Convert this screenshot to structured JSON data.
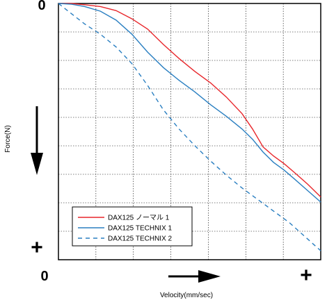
{
  "chart_data": {
    "type": "line",
    "title": "",
    "xlabel": "Velocity(mm/sec)",
    "ylabel": "Force(N)",
    "x_direction_symbol": "+",
    "y_direction_symbol": "+",
    "x_origin_label": "0",
    "y_origin_label": "0",
    "x_range": [
      0,
      1
    ],
    "y_range": [
      0,
      1
    ],
    "y_axis_inverted": true,
    "grid": true,
    "legend_position": "bottom-left",
    "series": [
      {
        "name": "DAX125 ノーマル 1",
        "color": "#e8262b",
        "dash": "solid",
        "points": [
          [
            0,
            0
          ],
          [
            0.05,
            0.0
          ],
          [
            0.1,
            0.005
          ],
          [
            0.16,
            0.012
          ],
          [
            0.22,
            0.028
          ],
          [
            0.28,
            0.06
          ],
          [
            0.34,
            0.1
          ],
          [
            0.4,
            0.16
          ],
          [
            0.46,
            0.215
          ],
          [
            0.52,
            0.265
          ],
          [
            0.58,
            0.31
          ],
          [
            0.64,
            0.365
          ],
          [
            0.7,
            0.43
          ],
          [
            0.74,
            0.49
          ],
          [
            0.78,
            0.56
          ],
          [
            0.82,
            0.595
          ],
          [
            0.86,
            0.625
          ],
          [
            0.9,
            0.66
          ],
          [
            0.95,
            0.705
          ],
          [
            1.0,
            0.755
          ]
        ]
      },
      {
        "name": "DAX125 TECHNIX 1",
        "color": "#2a7fc1",
        "dash": "solid",
        "points": [
          [
            0,
            0
          ],
          [
            0.05,
            0.003
          ],
          [
            0.1,
            0.012
          ],
          [
            0.16,
            0.03
          ],
          [
            0.22,
            0.065
          ],
          [
            0.28,
            0.12
          ],
          [
            0.34,
            0.19
          ],
          [
            0.4,
            0.25
          ],
          [
            0.46,
            0.3
          ],
          [
            0.52,
            0.345
          ],
          [
            0.58,
            0.395
          ],
          [
            0.64,
            0.44
          ],
          [
            0.7,
            0.49
          ],
          [
            0.74,
            0.53
          ],
          [
            0.78,
            0.58
          ],
          [
            0.82,
            0.62
          ],
          [
            0.86,
            0.65
          ],
          [
            0.9,
            0.685
          ],
          [
            0.95,
            0.73
          ],
          [
            1.0,
            0.775
          ]
        ]
      },
      {
        "name": "DAX125 TECHNIX 2",
        "color": "#2a7fc1",
        "dash": "dashed",
        "points": [
          [
            0,
            0
          ],
          [
            0.05,
            0.04
          ],
          [
            0.1,
            0.08
          ],
          [
            0.16,
            0.12
          ],
          [
            0.22,
            0.17
          ],
          [
            0.28,
            0.235
          ],
          [
            0.34,
            0.32
          ],
          [
            0.4,
            0.415
          ],
          [
            0.46,
            0.49
          ],
          [
            0.52,
            0.555
          ],
          [
            0.58,
            0.615
          ],
          [
            0.64,
            0.67
          ],
          [
            0.7,
            0.72
          ],
          [
            0.76,
            0.765
          ],
          [
            0.82,
            0.81
          ],
          [
            0.88,
            0.855
          ],
          [
            0.94,
            0.91
          ],
          [
            1.0,
            0.965
          ]
        ]
      }
    ]
  }
}
